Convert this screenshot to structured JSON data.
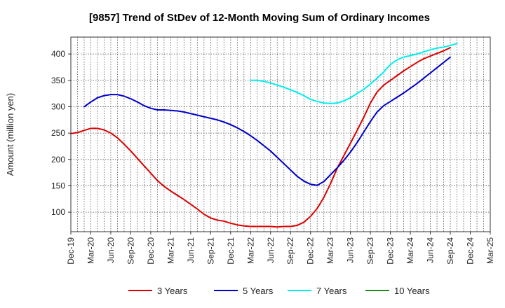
{
  "chart_data": {
    "type": "line",
    "title": "[9857]  Trend of StDev of 12-Month Moving Sum of Ordinary Incomes",
    "xlabel": "",
    "ylabel": "Amount (million yen)",
    "ylim": [
      63,
      432
    ],
    "yticks": [
      100,
      150,
      200,
      250,
      300,
      350,
      400
    ],
    "grid": true,
    "legend_position": "bottom",
    "x_ticks": [
      "Dec-19",
      "Mar-20",
      "Jun-20",
      "Sep-20",
      "Dec-20",
      "Mar-21",
      "Jun-21",
      "Sep-21",
      "Dec-21",
      "Mar-22",
      "Jun-22",
      "Sep-22",
      "Dec-22",
      "Mar-23",
      "Jun-23",
      "Sep-23",
      "Dec-23",
      "Mar-24",
      "Jun-24",
      "Sep-24",
      "Dec-24",
      "Mar-25"
    ],
    "x_index_range": [
      0,
      63
    ],
    "series": [
      {
        "name": "3 Years",
        "color": "#dd0000",
        "start_index": 0,
        "values": [
          249,
          251,
          255,
          259,
          259,
          256,
          250,
          241,
          229,
          216,
          202,
          188,
          174,
          160,
          149,
          140,
          132,
          124,
          115,
          106,
          96,
          89,
          85,
          83,
          79,
          76,
          74,
          73,
          73,
          73,
          73,
          72,
          73,
          73,
          75,
          81,
          92,
          107,
          128,
          154,
          183,
          207,
          231,
          255,
          280,
          307,
          328,
          341,
          350,
          359,
          368,
          376,
          384,
          391,
          396,
          401,
          406,
          412
        ],
        "values_note": "one value per month from Dec-19"
      },
      {
        "name": "5 Years",
        "color": "#0000cc",
        "start_index": 2,
        "values": [
          300,
          309,
          317,
          321,
          323,
          323,
          320,
          315,
          309,
          302,
          297,
          294,
          294,
          293,
          292,
          290,
          287,
          284,
          281,
          278,
          275,
          271,
          266,
          260,
          253,
          245,
          236,
          226,
          216,
          204,
          192,
          180,
          168,
          159,
          153,
          151,
          158,
          171,
          184,
          198,
          214,
          232,
          252,
          272,
          290,
          302,
          310,
          318,
          326,
          335,
          344,
          354,
          364,
          374,
          384,
          394
        ]
      },
      {
        "name": "7 Years",
        "color": "#00eeee",
        "start_index": 27,
        "values": [
          350,
          350,
          348,
          345,
          341,
          337,
          332,
          327,
          321,
          314,
          310,
          307,
          306,
          307,
          311,
          317,
          325,
          333,
          343,
          354,
          366,
          380,
          389,
          394,
          397,
          400,
          404,
          408,
          411,
          413,
          416,
          420
        ]
      },
      {
        "name": "10 Years",
        "color": "#228b22",
        "start_index": 0,
        "values": []
      }
    ]
  }
}
